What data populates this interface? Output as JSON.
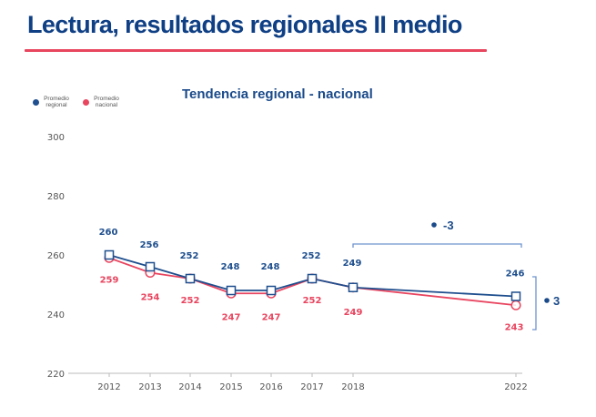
{
  "header": {
    "title": "Lectura, resultados regionales II medio"
  },
  "colors": {
    "regional": "#1f4f8e",
    "nacional": "#e8455f",
    "bracket": "#6f93cf",
    "axis": "#bbbbbb"
  },
  "chart_data": {
    "type": "line",
    "title": "Tendencia regional - nacional",
    "xlabel": "",
    "ylabel": "",
    "x": [
      "2012",
      "2013",
      "2014",
      "2015",
      "2016",
      "2017",
      "2018",
      "2022"
    ],
    "ylim": [
      220,
      300
    ],
    "yticks": [
      220,
      240,
      260,
      280,
      300
    ],
    "grid": false,
    "legend": "top-left",
    "series": [
      {
        "name": "Promedio regional",
        "legend_label": [
          "Promedio",
          "regional"
        ],
        "marker": "square",
        "color_key": "regional",
        "values": [
          260,
          256,
          252,
          248,
          248,
          252,
          249,
          246
        ]
      },
      {
        "name": "Promedio nacional",
        "legend_label": [
          "Promedio",
          "nacional"
        ],
        "marker": "circle",
        "color_key": "nacional",
        "values": [
          259,
          254,
          252,
          247,
          247,
          252,
          249,
          243
        ]
      }
    ],
    "annotations": [
      {
        "type": "bracket-horizontal",
        "from": "2018",
        "to": "2022",
        "label": "-3",
        "description": "Cambio regional 2018-2022"
      },
      {
        "type": "bracket-vertical",
        "at": "2022",
        "label": "3",
        "description": "Diferencia regional - nacional 2022"
      }
    ]
  }
}
